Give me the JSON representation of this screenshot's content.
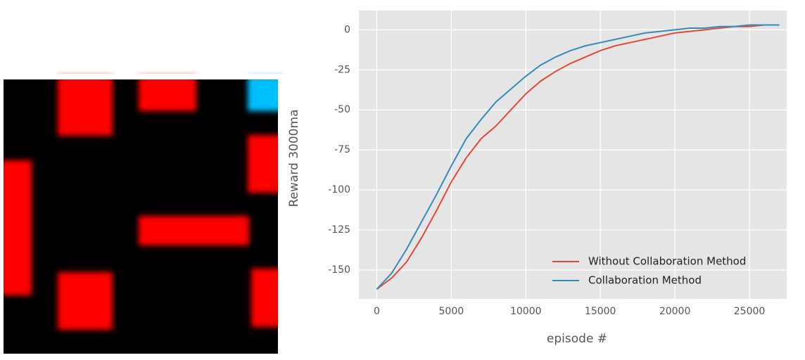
{
  "chart_data": {
    "type": "line",
    "xlabel": "episode #",
    "ylabel": "Reward 3000ma",
    "x": [
      0,
      1000,
      2000,
      3000,
      4000,
      5000,
      6000,
      7000,
      8000,
      9000,
      10000,
      11000,
      12000,
      13000,
      14000,
      15000,
      16000,
      17000,
      18000,
      19000,
      20000,
      21000,
      22000,
      23000,
      24000,
      25000,
      26000,
      27000
    ],
    "series": [
      {
        "name": "Without Collaboration Method",
        "color": "#E24A33",
        "values": [
          -162,
          -155,
          -145,
          -130,
          -113,
          -95,
          -80,
          -68,
          -60,
          -50,
          -40,
          -32,
          -26,
          -21,
          -17,
          -13,
          -10,
          -8,
          -6,
          -4,
          -2,
          -1,
          0,
          1,
          2,
          2,
          3,
          3
        ]
      },
      {
        "name": "Collaboration Method",
        "color": "#348ABD",
        "values": [
          -162,
          -152,
          -137,
          -120,
          -103,
          -85,
          -68,
          -56,
          -45,
          -37,
          -29,
          -22,
          -17,
          -13,
          -10,
          -8,
          -6,
          -4,
          -2,
          -1,
          0,
          1,
          1,
          2,
          2,
          3,
          3,
          3
        ]
      }
    ],
    "xlim": [
      -1200,
      27500
    ],
    "ylim": [
      -168,
      12
    ],
    "xticks": [
      0,
      5000,
      10000,
      15000,
      20000,
      25000
    ],
    "yticks": [
      0,
      -25,
      -50,
      -75,
      -100,
      -125,
      -150
    ],
    "grid": true,
    "legend": "lower right"
  }
}
